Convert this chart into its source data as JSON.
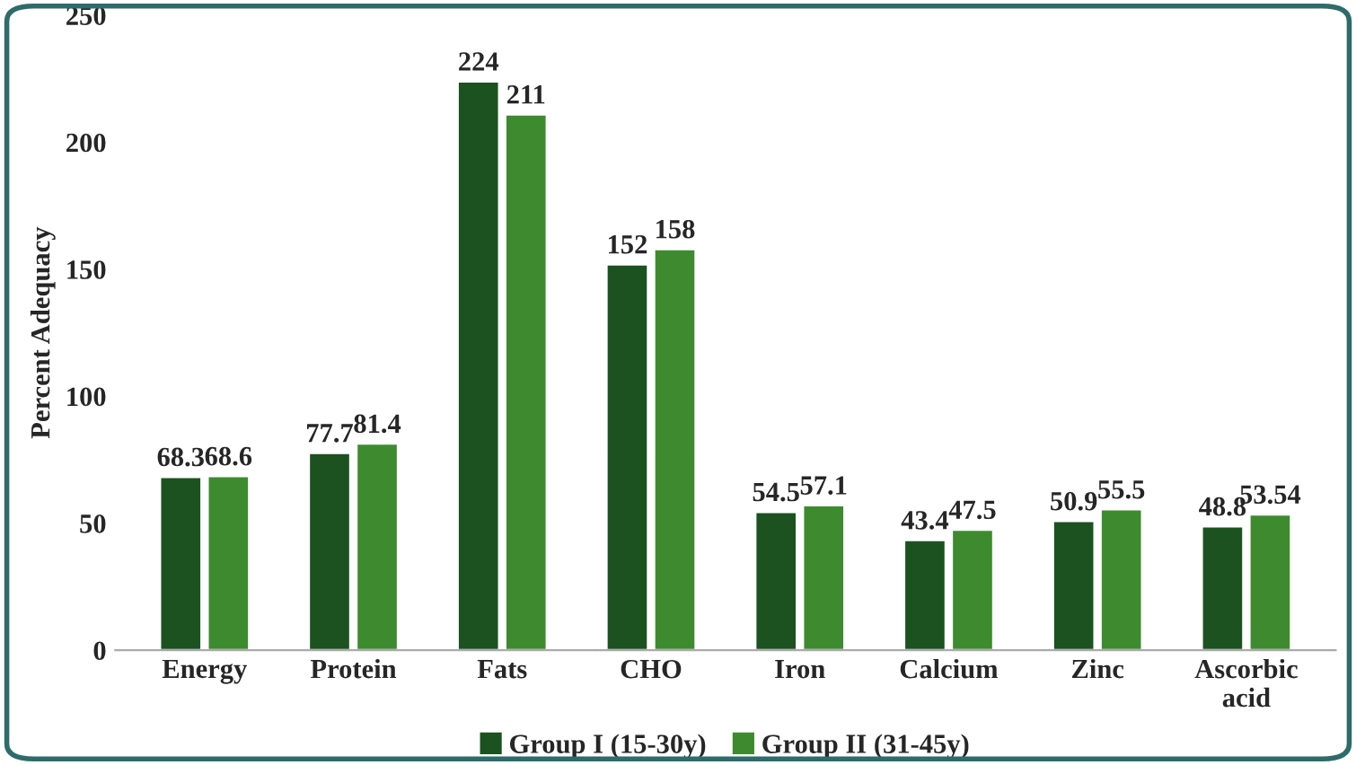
{
  "chart_data": {
    "type": "bar",
    "ylabel": "Percent Adequacy",
    "categories": [
      "Energy",
      "Protein",
      "Fats",
      "CHO",
      "Iron",
      "Calcium",
      "Zinc",
      "Ascorbic\nacid"
    ],
    "series": [
      {
        "name": "Group I (15-30y)",
        "color": "#1b5220",
        "values": [
          68.3,
          77.7,
          224,
          152,
          54.5,
          43.4,
          50.9,
          48.8
        ]
      },
      {
        "name": "Group II (31-45y)",
        "color": "#3d8b2e",
        "values": [
          68.6,
          81.4,
          211,
          158,
          57.1,
          47.5,
          55.5,
          53.54
        ]
      }
    ],
    "ylim": [
      0,
      250
    ],
    "yticks": [
      0,
      50,
      100,
      150,
      200,
      250
    ],
    "grid": false,
    "legend": "bottom",
    "data_labels": true
  }
}
